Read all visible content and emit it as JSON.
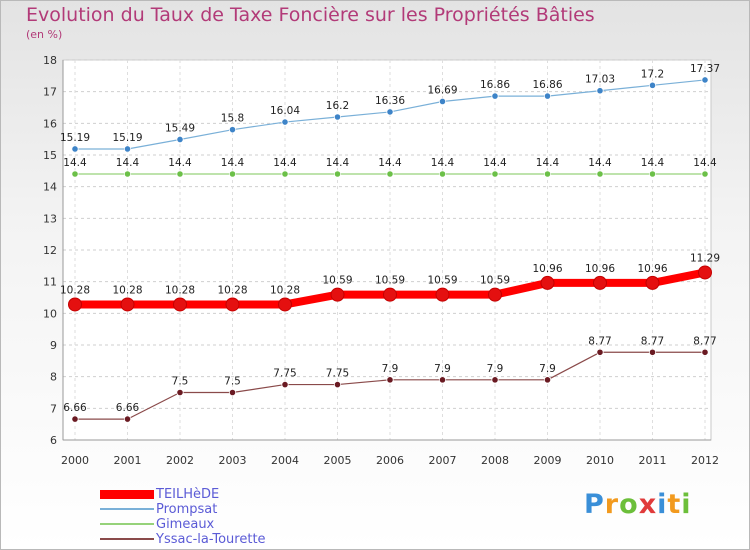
{
  "chart_data": {
    "type": "line",
    "title": "Evolution du Taux de Taxe Foncière sur les Propriétés Bâties",
    "ylabel": "(en %)",
    "xlabel": "",
    "ylim": [
      6,
      18
    ],
    "yticks": [
      6,
      7,
      8,
      9,
      10,
      11,
      12,
      13,
      14,
      15,
      16,
      17,
      18
    ],
    "categories": [
      "2000",
      "2001",
      "2002",
      "2003",
      "2004",
      "2005",
      "2006",
      "2007",
      "2008",
      "2009",
      "2010",
      "2011",
      "2012"
    ],
    "series": [
      {
        "name": "TEILHèDE",
        "color": "#ff0000",
        "marker_color": "#e41010",
        "labels": [
          "10.28",
          "10.28",
          "10.28",
          "10.28",
          "10.28",
          "10.59",
          "10.59",
          "10.59",
          "10.59",
          "10.96",
          "10.96",
          "10.96",
          "11.29"
        ],
        "values": [
          10.28,
          10.28,
          10.28,
          10.28,
          10.28,
          10.59,
          10.59,
          10.59,
          10.59,
          10.96,
          10.96,
          10.96,
          11.29
        ]
      },
      {
        "name": "Prompsat",
        "color": "#7ab0d8",
        "marker_color": "#3e84c8",
        "labels": [
          "15.19",
          "15.19",
          "15.49",
          "15.8",
          "16.04",
          "16.2",
          "16.36",
          "16.69",
          "16.86",
          "16.86",
          "17.03",
          "17.2",
          "17.37"
        ],
        "values": [
          15.19,
          15.19,
          15.49,
          15.8,
          16.04,
          16.2,
          16.36,
          16.69,
          16.86,
          16.86,
          17.03,
          17.2,
          17.37
        ]
      },
      {
        "name": "Gimeaux",
        "color": "#96d27a",
        "marker_color": "#6cc048",
        "labels": [
          "14.4",
          "14.4",
          "14.4",
          "14.4",
          "14.4",
          "14.4",
          "14.4",
          "14.4",
          "14.4",
          "14.4",
          "14.4",
          "14.4",
          "14.4"
        ],
        "values": [
          14.4,
          14.4,
          14.4,
          14.4,
          14.4,
          14.4,
          14.4,
          14.4,
          14.4,
          14.4,
          14.4,
          14.4,
          14.4
        ]
      },
      {
        "name": "Yssac-la-Tourette",
        "color": "#8a4a4a",
        "marker_color": "#6a1a22",
        "labels": [
          "6.66",
          "6.66",
          "7.5",
          "7.5",
          "7.75",
          "7.75",
          "7.9",
          "7.9",
          "7.9",
          "7.9",
          "8.77",
          "8.77",
          "8.77"
        ],
        "values": [
          6.66,
          6.66,
          7.5,
          7.5,
          7.75,
          7.75,
          7.9,
          7.9,
          7.9,
          7.9,
          8.77,
          8.77,
          8.77
        ]
      }
    ],
    "legend": [
      "TEILHèDE",
      "Prompsat",
      "Gimeaux",
      "Yssac-la-Tourette"
    ],
    "legend_position": "bottom-left"
  },
  "logo": {
    "letters": [
      "P",
      "r",
      "o",
      "x",
      "i",
      "t",
      "i"
    ],
    "colors": [
      "#3a8fd8",
      "#f29a1e",
      "#6cbf3a",
      "#e03a3a",
      "#3a8fd8",
      "#f29a1e",
      "#6cbf3a"
    ]
  }
}
